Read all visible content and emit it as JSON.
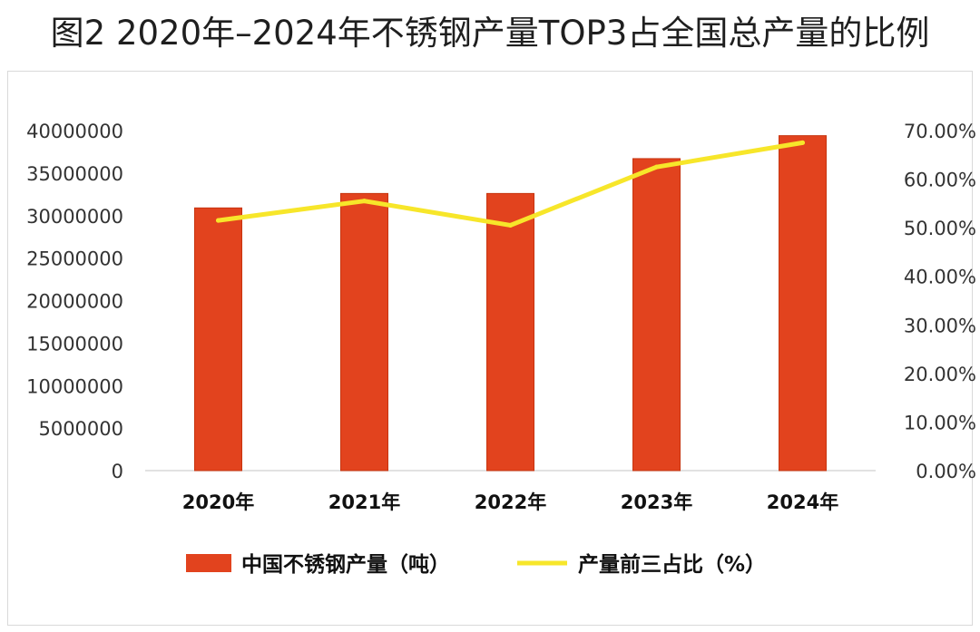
{
  "title": "图2 2020年–2024年不锈钢产量TOP3占全国总产量的比例",
  "colors": {
    "bar": "#e2431e",
    "bar_edge": "#c7340f",
    "line": "#f7e62a"
  },
  "chart_data": {
    "type": "bar",
    "title": "图2 2020年–2024年不锈钢产量TOP3占全国总产量的比例",
    "categories": [
      "2020年",
      "2021年",
      "2022年",
      "2023年",
      "2024年"
    ],
    "series": [
      {
        "name": "中国不锈钢产量（吨）",
        "type": "bar",
        "axis": "left",
        "values": [
          30900000,
          32600000,
          32600000,
          36700000,
          39400000
        ]
      },
      {
        "name": "产量前三占比（%）",
        "type": "line",
        "axis": "right",
        "values": [
          51.5,
          55.5,
          50.5,
          62.5,
          67.5
        ]
      }
    ],
    "left_axis": {
      "ylim": [
        0,
        40000000
      ],
      "ticks": [
        "0",
        "5000000",
        "10000000",
        "15000000",
        "20000000",
        "25000000",
        "30000000",
        "35000000",
        "40000000"
      ]
    },
    "right_axis": {
      "ylim": [
        0,
        70
      ],
      "ticks": [
        "0.00%",
        "10.00%",
        "20.00%",
        "30.00%",
        "40.00%",
        "50.00%",
        "60.00%",
        "70.00%"
      ]
    },
    "grid": false,
    "legend": "bottom"
  }
}
